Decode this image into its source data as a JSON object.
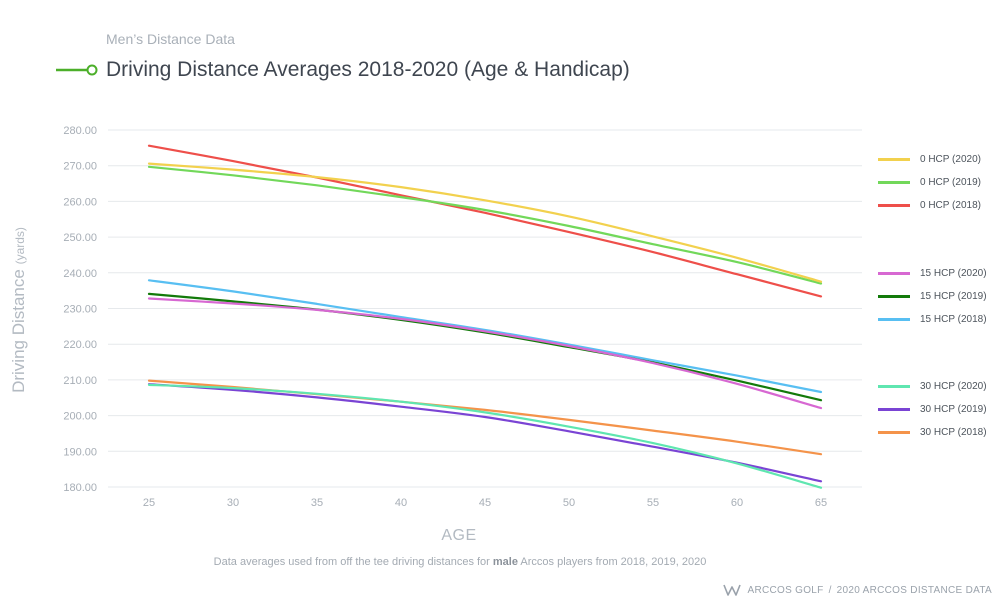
{
  "header": {
    "supertitle": "Men’s Distance Data",
    "title": "Driving Distance Averages 2018-2020 (Age & Handicap)",
    "icon": "green-line-circle-icon",
    "icon_color": "#4caf2a"
  },
  "footnote": {
    "before": "Data averages used from off the tee driving distances for ",
    "bold": "male",
    "after": " Arccos players from 2018, 2019, 2020"
  },
  "brand": {
    "logo": "arccos-logo-icon",
    "name": "ARCCOS GOLF",
    "separator": "/",
    "caption": "2020 ARCCOS DISTANCE DATA"
  },
  "chart_data": {
    "type": "line",
    "xlabel": "AGE",
    "ylabel": "Driving Distance",
    "ylabel_unit": "(yards)",
    "x": [
      25,
      30,
      35,
      40,
      45,
      50,
      55,
      60,
      65
    ],
    "x_ticks": [
      "25",
      "30",
      "35",
      "40",
      "45",
      "50",
      "55",
      "60",
      "65"
    ],
    "y_ticks": [
      "280.00",
      "270.00",
      "260.00",
      "250.00",
      "240.00",
      "230.00",
      "220.00",
      "210.00",
      "200.00",
      "190.00",
      "180.00"
    ],
    "xlim": [
      25,
      65
    ],
    "ylim": [
      180,
      280
    ],
    "grid": "horizontal",
    "legend_position": "right",
    "series": [
      {
        "name": "0 HCP (2020)",
        "color": "#f2d14e",
        "group": 0,
        "values": [
          270.6,
          268.9,
          266.8,
          264.0,
          260.3,
          255.8,
          250.2,
          244.2,
          237.5
        ]
      },
      {
        "name": "0 HCP (2019)",
        "color": "#72d85a",
        "group": 0,
        "values": [
          269.7,
          267.3,
          264.5,
          261.2,
          257.6,
          253.1,
          248.0,
          243.0,
          237.0
        ]
      },
      {
        "name": "0 HCP (2018)",
        "color": "#ee4f4a",
        "group": 0,
        "values": [
          275.6,
          271.3,
          266.7,
          261.7,
          256.8,
          251.4,
          245.8,
          239.6,
          233.4
        ]
      },
      {
        "name": "15 HCP (2020)",
        "color": "#d768d2",
        "group": 1,
        "values": [
          232.8,
          231.4,
          229.6,
          227.1,
          223.6,
          219.5,
          214.7,
          208.9,
          202.1
        ]
      },
      {
        "name": "15 HCP (2019)",
        "color": "#137a0a",
        "group": 1,
        "values": [
          234.1,
          232.0,
          229.7,
          226.8,
          223.3,
          219.2,
          214.9,
          209.8,
          204.3
        ]
      },
      {
        "name": "15 HCP (2018)",
        "color": "#58bff2",
        "group": 1,
        "values": [
          237.9,
          234.8,
          231.3,
          227.6,
          224.0,
          219.9,
          215.5,
          211.2,
          206.6
        ]
      },
      {
        "name": "30 HCP (2020)",
        "color": "#5fe6b0",
        "group": 2,
        "values": [
          208.6,
          207.7,
          206.1,
          203.9,
          200.9,
          196.9,
          192.3,
          186.6,
          179.8
        ]
      },
      {
        "name": "30 HCP (2019)",
        "color": "#7a44d4",
        "group": 2,
        "values": [
          208.8,
          207.2,
          205.1,
          202.5,
          199.6,
          195.6,
          191.3,
          186.8,
          181.6
        ]
      },
      {
        "name": "30 HCP (2018)",
        "color": "#f4934a",
        "group": 2,
        "values": [
          209.8,
          208.0,
          206.0,
          203.9,
          201.6,
          198.8,
          195.8,
          192.7,
          189.2
        ]
      }
    ]
  }
}
